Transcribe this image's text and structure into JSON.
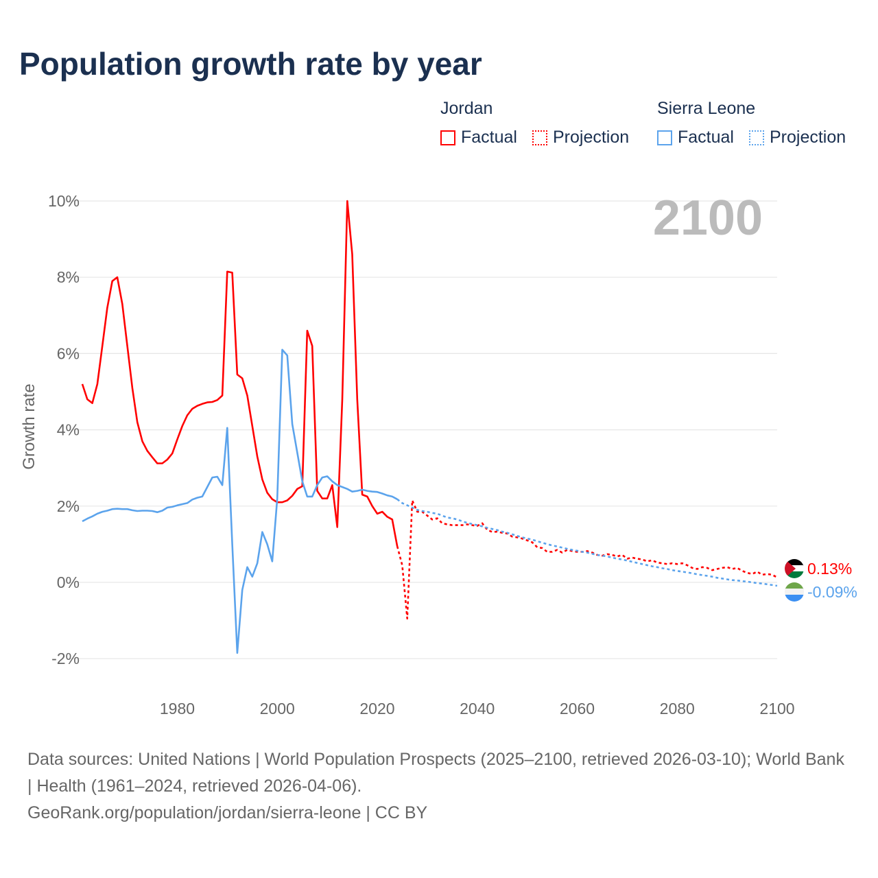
{
  "title": "Population growth rate by year",
  "legend": {
    "groups": [
      {
        "name": "Jordan",
        "color": "#ff0000",
        "items": [
          "Factual",
          "Projection"
        ]
      },
      {
        "name": "Sierra Leone",
        "color": "#5ba3ec",
        "items": [
          "Factual",
          "Projection"
        ]
      }
    ]
  },
  "year_display": "2100",
  "end_labels": {
    "jordan": "0.13%",
    "sierra_leone": "-0.09%"
  },
  "sources": {
    "line1": "Data sources: United Nations | World Population Prospects (2025–2100, retrieved 2026-03-10); World Bank | Health (1961–2024, retrieved 2026-04-06).",
    "line2": "GeoRank.org/population/jordan/sierra-leone | CC BY"
  },
  "chart_data": {
    "type": "line",
    "title": "Population growth rate by year",
    "xlabel": "",
    "ylabel": "Growth rate",
    "xlim": [
      1961,
      2100
    ],
    "ylim": [
      -2,
      10
    ],
    "yticks": [
      {
        "v": 10,
        "label": "10%"
      },
      {
        "v": 8,
        "label": "8%"
      },
      {
        "v": 6,
        "label": "6%"
      },
      {
        "v": 4,
        "label": "4%"
      },
      {
        "v": 2,
        "label": "2%"
      },
      {
        "v": 0,
        "label": "0%"
      },
      {
        "v": -2,
        "label": "-2%"
      }
    ],
    "xticks": [
      {
        "v": 1980,
        "label": "1980"
      },
      {
        "v": 2000,
        "label": "2000"
      },
      {
        "v": 2020,
        "label": "2020"
      },
      {
        "v": 2040,
        "label": "2040"
      },
      {
        "v": 2060,
        "label": "2060"
      },
      {
        "v": 2080,
        "label": "2080"
      },
      {
        "v": 2100,
        "label": "2100"
      }
    ],
    "grid": true,
    "legend_position": "top-right",
    "series": [
      {
        "name": "Jordan Factual",
        "color": "#ff0000",
        "style": "solid",
        "x_start": 1961,
        "values": [
          5.2,
          4.8,
          4.7,
          5.2,
          6.2,
          7.2,
          7.9,
          8.0,
          7.3,
          6.2,
          5.1,
          4.2,
          3.7,
          3.45,
          3.28,
          3.12,
          3.12,
          3.22,
          3.38,
          3.75,
          4.1,
          4.38,
          4.55,
          4.63,
          4.68,
          4.72,
          4.73,
          4.78,
          4.9,
          8.15,
          8.12,
          5.45,
          5.35,
          4.9,
          4.1,
          3.3,
          2.7,
          2.35,
          2.18,
          2.1,
          2.1,
          2.15,
          2.27,
          2.45,
          2.52,
          6.6,
          6.2,
          2.4,
          2.2,
          2.2,
          2.55,
          1.45,
          4.8,
          10.0,
          8.6,
          4.8,
          2.3,
          2.25,
          2.0,
          1.8,
          1.85,
          1.72,
          1.65,
          0.95
        ]
      },
      {
        "name": "Jordan Projection",
        "color": "#ff0000",
        "style": "dotted",
        "x_start": 2024,
        "values": [
          0.95,
          0.45,
          -0.95,
          2.15,
          1.85,
          1.85,
          1.75,
          1.65,
          1.68,
          1.55,
          1.52,
          1.5,
          1.5,
          1.5,
          1.52,
          1.5,
          1.48,
          1.55,
          1.38,
          1.32,
          1.33,
          1.3,
          1.28,
          1.2,
          1.18,
          1.15,
          1.1,
          1.05,
          0.92,
          0.9,
          0.8,
          0.8,
          0.85,
          0.78,
          0.85,
          0.82,
          0.8,
          0.8,
          0.82,
          0.78,
          0.72,
          0.7,
          0.74,
          0.72,
          0.68,
          0.72,
          0.62,
          0.65,
          0.62,
          0.6,
          0.55,
          0.58,
          0.52,
          0.5,
          0.48,
          0.5,
          0.48,
          0.5,
          0.45,
          0.38,
          0.35,
          0.4,
          0.38,
          0.32,
          0.35,
          0.38,
          0.4,
          0.35,
          0.38,
          0.3,
          0.25,
          0.22,
          0.28,
          0.2,
          0.22,
          0.2,
          0.13
        ]
      },
      {
        "name": "Sierra Leone Factual",
        "color": "#5ba3ec",
        "style": "solid",
        "x_start": 1961,
        "values": [
          1.6,
          1.67,
          1.73,
          1.8,
          1.85,
          1.88,
          1.92,
          1.93,
          1.92,
          1.92,
          1.89,
          1.87,
          1.88,
          1.88,
          1.87,
          1.84,
          1.88,
          1.96,
          1.98,
          2.02,
          2.05,
          2.08,
          2.17,
          2.22,
          2.25,
          2.5,
          2.75,
          2.77,
          2.55,
          4.05,
          1.0,
          -1.85,
          -0.2,
          0.4,
          0.15,
          0.5,
          1.32,
          1.0,
          0.55,
          2.2,
          6.1,
          5.95,
          4.15,
          3.4,
          2.65,
          2.25,
          2.25,
          2.55,
          2.75,
          2.78,
          2.65,
          2.55,
          2.5,
          2.45,
          2.38,
          2.4,
          2.43,
          2.4,
          2.38,
          2.37,
          2.33,
          2.28,
          2.25,
          2.18
        ]
      },
      {
        "name": "Sierra Leone Projection",
        "color": "#5ba3ec",
        "style": "dotted",
        "x_start": 2024,
        "values": [
          2.18,
          2.08,
          2.02,
          1.96,
          1.9,
          1.87,
          1.85,
          1.82,
          1.8,
          1.75,
          1.7,
          1.68,
          1.65,
          1.6,
          1.56,
          1.53,
          1.5,
          1.47,
          1.43,
          1.4,
          1.37,
          1.33,
          1.3,
          1.26,
          1.22,
          1.18,
          1.15,
          1.12,
          1.08,
          1.04,
          1.0,
          0.97,
          0.94,
          0.91,
          0.88,
          0.85,
          0.83,
          0.8,
          0.78,
          0.75,
          0.72,
          0.7,
          0.68,
          0.65,
          0.62,
          0.6,
          0.57,
          0.54,
          0.51,
          0.48,
          0.45,
          0.42,
          0.4,
          0.37,
          0.35,
          0.32,
          0.3,
          0.28,
          0.26,
          0.24,
          0.21,
          0.19,
          0.17,
          0.15,
          0.12,
          0.1,
          0.08,
          0.06,
          0.05,
          0.03,
          0.02,
          0.0,
          -0.02,
          -0.03,
          -0.05,
          -0.07,
          -0.09
        ]
      }
    ]
  }
}
